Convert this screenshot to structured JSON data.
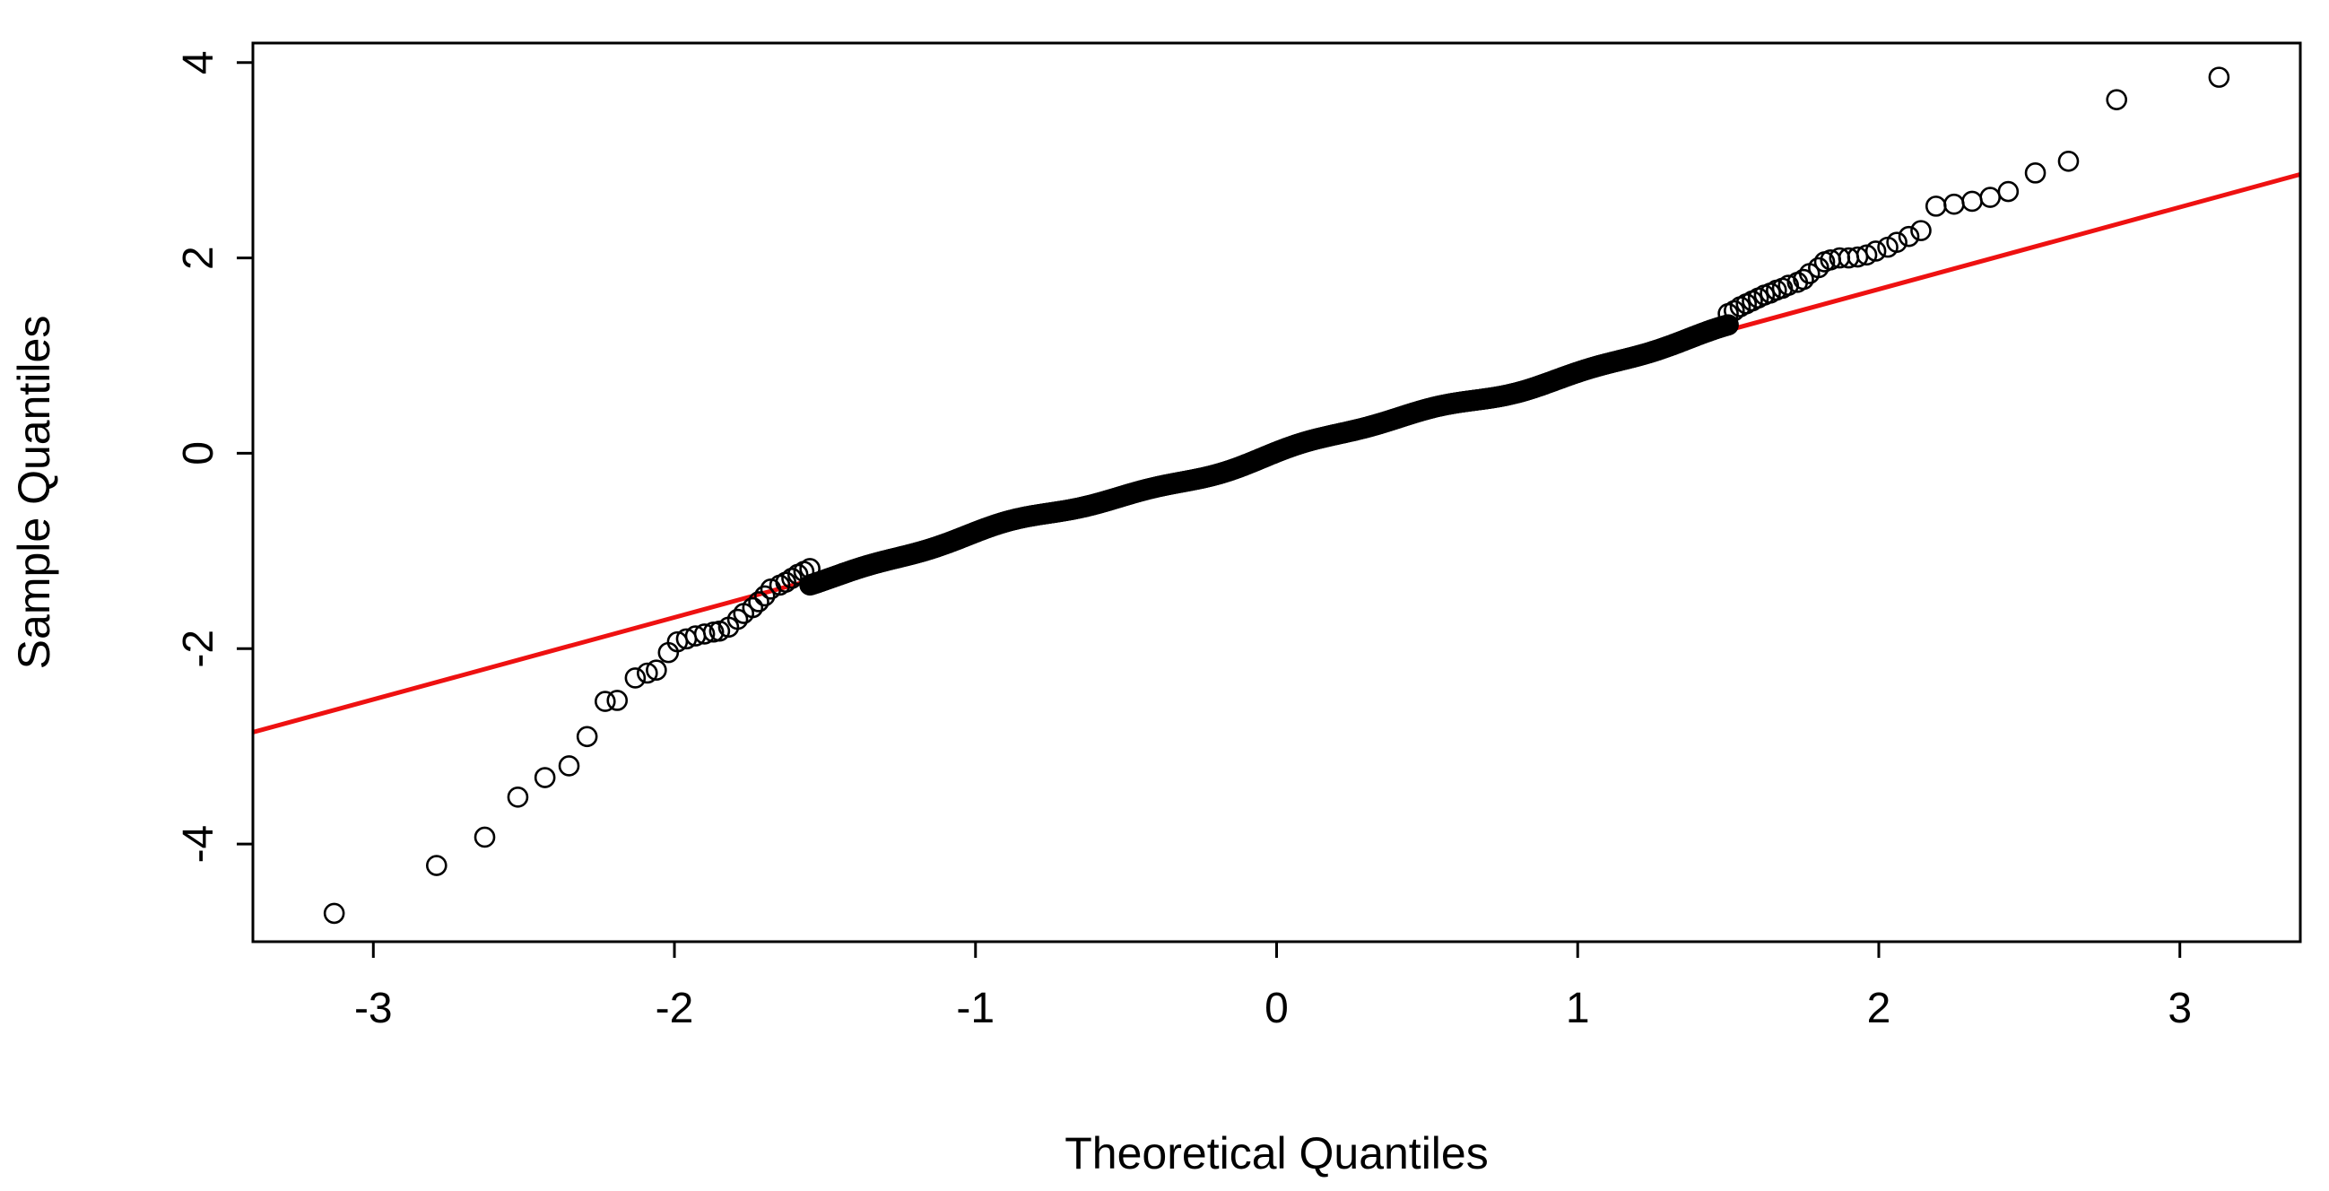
{
  "chart_data": {
    "type": "scatter",
    "title": "",
    "xlabel": "Theoretical Quantiles",
    "ylabel": "Sample Quantiles",
    "xlim": [
      -3.4,
      3.4
    ],
    "ylim": [
      -5.0,
      4.2
    ],
    "x_ticks": [
      -3,
      -2,
      -1,
      0,
      1,
      2,
      3
    ],
    "x_tick_labels": [
      "-3",
      "-2",
      "-1",
      "0",
      "1",
      "2",
      "3"
    ],
    "y_ticks": [
      -4,
      -2,
      0,
      2,
      4
    ],
    "y_tick_labels": [
      "-4",
      "-2",
      "0",
      "2",
      "4"
    ],
    "grid": false,
    "legend": "none",
    "point_color": "#000000",
    "point_marker": "open-circle",
    "reference_line": {
      "color": "#ee1111",
      "intercept": 0.0,
      "slope": 0.84
    },
    "qq_points": {
      "tail_points": [
        [
          -3.13,
          -4.71
        ],
        [
          -2.79,
          -4.22
        ],
        [
          -2.63,
          -3.93
        ],
        [
          -2.52,
          -3.52
        ],
        [
          -2.43,
          -3.32
        ],
        [
          -2.35,
          -3.2
        ],
        [
          -2.29,
          -2.9
        ],
        [
          -2.23,
          -2.54
        ],
        [
          -2.19,
          -2.53
        ],
        [
          -2.13,
          -2.3
        ],
        [
          -2.09,
          -2.25
        ],
        [
          -2.06,
          -2.22
        ],
        [
          -2.02,
          -2.04
        ],
        [
          -1.99,
          -1.93
        ],
        [
          -1.96,
          -1.9
        ],
        [
          -1.93,
          -1.87
        ],
        [
          -1.9,
          -1.85
        ],
        [
          -1.87,
          -1.83
        ],
        [
          -1.85,
          -1.82
        ],
        [
          -1.82,
          -1.78
        ],
        [
          -1.79,
          -1.7
        ],
        [
          -1.77,
          -1.64
        ],
        [
          -1.74,
          -1.58
        ],
        [
          -1.72,
          -1.52
        ],
        [
          -1.7,
          -1.46
        ],
        [
          -1.68,
          -1.39
        ],
        [
          -1.65,
          -1.35
        ],
        [
          -1.63,
          -1.32
        ],
        [
          -1.61,
          -1.28
        ],
        [
          -1.59,
          -1.24
        ],
        [
          -1.57,
          -1.21
        ],
        [
          -1.55,
          -1.18
        ],
        [
          1.5,
          1.43
        ],
        [
          1.52,
          1.46
        ],
        [
          1.54,
          1.5
        ],
        [
          1.56,
          1.53
        ],
        [
          1.58,
          1.56
        ],
        [
          1.6,
          1.59
        ],
        [
          1.62,
          1.62
        ],
        [
          1.64,
          1.64
        ],
        [
          1.66,
          1.67
        ],
        [
          1.68,
          1.69
        ],
        [
          1.7,
          1.72
        ],
        [
          1.73,
          1.75
        ],
        [
          1.75,
          1.78
        ],
        [
          1.77,
          1.84
        ],
        [
          1.8,
          1.9
        ],
        [
          1.82,
          1.96
        ],
        [
          1.84,
          1.98
        ],
        [
          1.87,
          2.0
        ],
        [
          1.9,
          2.0
        ],
        [
          1.93,
          2.01
        ],
        [
          1.96,
          2.03
        ],
        [
          1.99,
          2.07
        ],
        [
          2.03,
          2.11
        ],
        [
          2.06,
          2.16
        ],
        [
          2.1,
          2.22
        ],
        [
          2.14,
          2.28
        ],
        [
          2.19,
          2.53
        ],
        [
          2.25,
          2.55
        ],
        [
          2.31,
          2.58
        ],
        [
          2.37,
          2.62
        ],
        [
          2.43,
          2.68
        ],
        [
          2.52,
          2.87
        ],
        [
          2.63,
          2.99
        ],
        [
          2.79,
          3.62
        ],
        [
          3.13,
          3.85
        ]
      ],
      "body": {
        "count": 960,
        "x_range": [
          -1.55,
          1.5
        ],
        "note_y_relation": "y ≈ 0.84·x with small wiggle"
      }
    }
  }
}
